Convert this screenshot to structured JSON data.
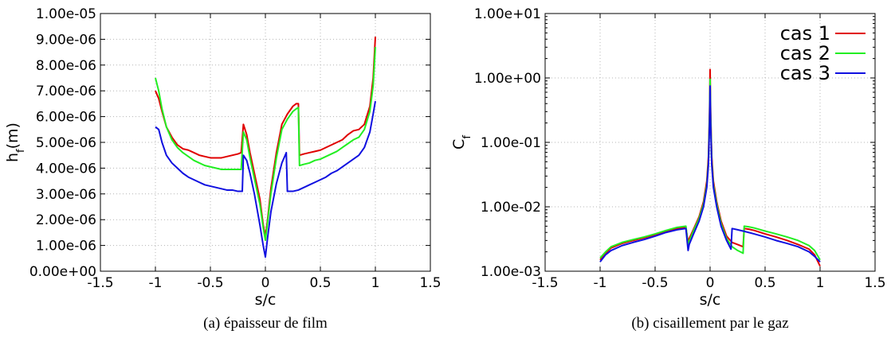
{
  "chart_data": [
    {
      "type": "line",
      "caption": "(a) épaisseur de film",
      "xlabel": "s/c",
      "ylabel": "h_f(m)",
      "ylabel_main": "h",
      "ylabel_sub": "f",
      "ylabel_tail": "(m)",
      "xlim": [
        -1.5,
        1.5
      ],
      "ylim": [
        0,
        1e-05
      ],
      "yscale": "linear",
      "grid": true,
      "x_ticks": [
        -1.5,
        -1,
        -0.5,
        0,
        0.5,
        1,
        1.5
      ],
      "x_tick_labels": [
        "-1.5",
        "-1",
        "-0.5",
        "0",
        "0.5",
        "1",
        "1.5"
      ],
      "y_ticks": [
        0,
        1e-06,
        2e-06,
        3e-06,
        4e-06,
        5e-06,
        6e-06,
        7e-06,
        8e-06,
        9e-06,
        1e-05
      ],
      "y_tick_labels": [
        "0.00e+00",
        "1.00e-06",
        "2.00e-06",
        "3.00e-06",
        "4.00e-06",
        "5.00e-06",
        "6.00e-06",
        "7.00e-06",
        "8.00e-06",
        "9.00e-06",
        "1.00e-05"
      ],
      "series": [
        {
          "color": "#e00000",
          "x": [
            -1.0,
            -0.97,
            -0.94,
            -0.9,
            -0.85,
            -0.8,
            -0.75,
            -0.7,
            -0.65,
            -0.6,
            -0.55,
            -0.5,
            -0.45,
            -0.4,
            -0.35,
            -0.3,
            -0.25,
            -0.22,
            -0.2,
            -0.17,
            -0.14,
            -0.1,
            -0.05,
            -0.02,
            0.0,
            0.02,
            0.05,
            0.1,
            0.15,
            0.2,
            0.25,
            0.28,
            0.3,
            0.31,
            0.35,
            0.4,
            0.45,
            0.5,
            0.55,
            0.6,
            0.65,
            0.7,
            0.75,
            0.8,
            0.85,
            0.9,
            0.95,
            0.98,
            1.0
          ],
          "y": [
            7e-06,
            6.7e-06,
            6.2e-06,
            5.6e-06,
            5.2e-06,
            4.9e-06,
            4.75e-06,
            4.7e-06,
            4.6e-06,
            4.5e-06,
            4.45e-06,
            4.4e-06,
            4.4e-06,
            4.4e-06,
            4.45e-06,
            4.5e-06,
            4.55e-06,
            4.6e-06,
            5.7e-06,
            5.3e-06,
            4.6e-06,
            3.8e-06,
            2.8e-06,
            1.8e-06,
            1.35e-06,
            2e-06,
            3.2e-06,
            4.6e-06,
            5.7e-06,
            6.1e-06,
            6.4e-06,
            6.5e-06,
            6.5e-06,
            4.5e-06,
            4.55e-06,
            4.6e-06,
            4.65e-06,
            4.7e-06,
            4.8e-06,
            4.9e-06,
            5e-06,
            5.1e-06,
            5.3e-06,
            5.45e-06,
            5.5e-06,
            5.7e-06,
            6.4e-06,
            7.5e-06,
            9.1e-06
          ]
        },
        {
          "color": "#22ee22",
          "x": [
            -1.0,
            -0.97,
            -0.94,
            -0.9,
            -0.85,
            -0.8,
            -0.75,
            -0.7,
            -0.65,
            -0.6,
            -0.55,
            -0.5,
            -0.45,
            -0.4,
            -0.35,
            -0.3,
            -0.25,
            -0.22,
            -0.2,
            -0.17,
            -0.14,
            -0.1,
            -0.05,
            -0.02,
            0.0,
            0.02,
            0.05,
            0.1,
            0.15,
            0.2,
            0.25,
            0.28,
            0.3,
            0.31,
            0.35,
            0.4,
            0.45,
            0.5,
            0.55,
            0.6,
            0.65,
            0.7,
            0.75,
            0.8,
            0.85,
            0.9,
            0.95,
            0.98,
            1.0
          ],
          "y": [
            7.5e-06,
            7e-06,
            6.3e-06,
            5.6e-06,
            5.1e-06,
            4.8e-06,
            4.6e-06,
            4.45e-06,
            4.3e-06,
            4.2e-06,
            4.1e-06,
            4.05e-06,
            4e-06,
            3.95e-06,
            3.95e-06,
            3.95e-06,
            3.95e-06,
            3.95e-06,
            5.4e-06,
            5.1e-06,
            4.4e-06,
            3.6e-06,
            2.6e-06,
            1.7e-06,
            1.2e-06,
            1.9e-06,
            3e-06,
            4.4e-06,
            5.5e-06,
            5.9e-06,
            6.2e-06,
            6.3e-06,
            6.35e-06,
            4.1e-06,
            4.15e-06,
            4.2e-06,
            4.3e-06,
            4.35e-06,
            4.45e-06,
            4.55e-06,
            4.65e-06,
            4.8e-06,
            4.95e-06,
            5.1e-06,
            5.2e-06,
            5.5e-06,
            6.2e-06,
            7.2e-06,
            8.7e-06
          ]
        },
        {
          "color": "#1010e0",
          "x": [
            -1.0,
            -0.97,
            -0.94,
            -0.9,
            -0.85,
            -0.8,
            -0.75,
            -0.7,
            -0.65,
            -0.6,
            -0.55,
            -0.5,
            -0.45,
            -0.4,
            -0.35,
            -0.3,
            -0.25,
            -0.21,
            -0.2,
            -0.17,
            -0.14,
            -0.1,
            -0.05,
            -0.02,
            0.0,
            0.02,
            0.05,
            0.1,
            0.15,
            0.19,
            0.2,
            0.25,
            0.3,
            0.35,
            0.4,
            0.45,
            0.5,
            0.55,
            0.6,
            0.65,
            0.7,
            0.75,
            0.8,
            0.85,
            0.9,
            0.95,
            0.98,
            1.0
          ],
          "y": [
            5.6e-06,
            5.5e-06,
            5e-06,
            4.5e-06,
            4.2e-06,
            4e-06,
            3.8e-06,
            3.65e-06,
            3.55e-06,
            3.45e-06,
            3.35e-06,
            3.3e-06,
            3.25e-06,
            3.2e-06,
            3.15e-06,
            3.15e-06,
            3.1e-06,
            3.1e-06,
            4.5e-06,
            4.3e-06,
            3.8e-06,
            3e-06,
            1.8e-06,
            1e-06,
            5.5e-07,
            1.3e-06,
            2.3e-06,
            3.4e-06,
            4.2e-06,
            4.6e-06,
            3.1e-06,
            3.1e-06,
            3.15e-06,
            3.25e-06,
            3.35e-06,
            3.45e-06,
            3.55e-06,
            3.65e-06,
            3.8e-06,
            3.9e-06,
            4.05e-06,
            4.2e-06,
            4.35e-06,
            4.5e-06,
            4.8e-06,
            5.4e-06,
            6.1e-06,
            6.6e-06
          ]
        }
      ]
    },
    {
      "type": "line",
      "caption": "(b) cisaillement par le gaz",
      "xlabel": "s/c",
      "ylabel": "C_f",
      "ylabel_main": "C",
      "ylabel_sub": "f",
      "xlim": [
        -1.5,
        1.5
      ],
      "ylim": [
        0.001,
        10
      ],
      "yscale": "log",
      "grid": true,
      "legend_position": "top-right",
      "x_ticks": [
        -1.5,
        -1,
        -0.5,
        0,
        0.5,
        1,
        1.5
      ],
      "x_tick_labels": [
        "-1.5",
        "-1",
        "-0.5",
        "0",
        "0.5",
        "1",
        "1.5"
      ],
      "y_ticks": [
        0.001,
        0.01,
        0.1,
        1,
        10
      ],
      "y_tick_labels": [
        "1.00e-03",
        "1.00e-02",
        "1.00e-01",
        "1.00e+00",
        "1.00e+01"
      ],
      "series": [
        {
          "name": "cas 1",
          "color": "#e00000",
          "x": [
            -1.0,
            -0.95,
            -0.9,
            -0.8,
            -0.7,
            -0.6,
            -0.5,
            -0.4,
            -0.3,
            -0.22,
            -0.2,
            -0.19,
            -0.15,
            -0.1,
            -0.06,
            -0.03,
            -0.015,
            -0.005,
            0.0,
            0.005,
            0.015,
            0.03,
            0.06,
            0.1,
            0.15,
            0.2,
            0.25,
            0.3,
            0.31,
            0.35,
            0.4,
            0.5,
            0.6,
            0.7,
            0.8,
            0.9,
            0.95,
            1.0
          ],
          "y": [
            0.0015,
            0.0019,
            0.0023,
            0.0027,
            0.003,
            0.0033,
            0.0037,
            0.0042,
            0.0046,
            0.0048,
            0.0028,
            0.0032,
            0.0045,
            0.007,
            0.012,
            0.025,
            0.06,
            0.3,
            1.35,
            0.3,
            0.06,
            0.025,
            0.012,
            0.006,
            0.0035,
            0.0028,
            0.0026,
            0.0024,
            0.0046,
            0.0045,
            0.0043,
            0.0038,
            0.0034,
            0.003,
            0.0026,
            0.0022,
            0.0018,
            0.0012
          ]
        },
        {
          "name": "cas 2",
          "color": "#22ee22",
          "x": [
            -1.0,
            -0.95,
            -0.9,
            -0.8,
            -0.7,
            -0.6,
            -0.5,
            -0.4,
            -0.3,
            -0.22,
            -0.2,
            -0.19,
            -0.15,
            -0.1,
            -0.06,
            -0.03,
            -0.015,
            -0.005,
            0.0,
            0.005,
            0.015,
            0.03,
            0.06,
            0.1,
            0.15,
            0.2,
            0.25,
            0.3,
            0.31,
            0.35,
            0.4,
            0.5,
            0.6,
            0.7,
            0.8,
            0.9,
            0.95,
            1.0
          ],
          "y": [
            0.0016,
            0.002,
            0.0024,
            0.0028,
            0.0031,
            0.0034,
            0.0038,
            0.0043,
            0.0048,
            0.005,
            0.0025,
            0.0029,
            0.0043,
            0.0066,
            0.011,
            0.022,
            0.05,
            0.25,
            0.95,
            0.25,
            0.05,
            0.022,
            0.011,
            0.0055,
            0.0032,
            0.0024,
            0.0021,
            0.0019,
            0.005,
            0.0049,
            0.0047,
            0.0042,
            0.0038,
            0.0034,
            0.003,
            0.0025,
            0.0021,
            0.0015
          ]
        },
        {
          "name": "cas 3",
          "color": "#1010e0",
          "x": [
            -1.0,
            -0.95,
            -0.9,
            -0.8,
            -0.7,
            -0.6,
            -0.5,
            -0.4,
            -0.3,
            -0.22,
            -0.2,
            -0.19,
            -0.15,
            -0.1,
            -0.06,
            -0.03,
            -0.015,
            -0.005,
            0.0,
            0.005,
            0.015,
            0.03,
            0.06,
            0.1,
            0.15,
            0.19,
            0.2,
            0.25,
            0.3,
            0.35,
            0.4,
            0.5,
            0.6,
            0.7,
            0.8,
            0.9,
            0.95,
            1.0
          ],
          "y": [
            0.0014,
            0.0018,
            0.0021,
            0.0025,
            0.0028,
            0.0031,
            0.0035,
            0.004,
            0.0044,
            0.0046,
            0.0021,
            0.0026,
            0.0038,
            0.006,
            0.01,
            0.02,
            0.045,
            0.2,
            0.75,
            0.2,
            0.045,
            0.02,
            0.01,
            0.005,
            0.003,
            0.0022,
            0.0046,
            0.0044,
            0.0042,
            0.004,
            0.0038,
            0.0034,
            0.003,
            0.0027,
            0.0024,
            0.002,
            0.0017,
            0.0014
          ]
        }
      ]
    }
  ]
}
